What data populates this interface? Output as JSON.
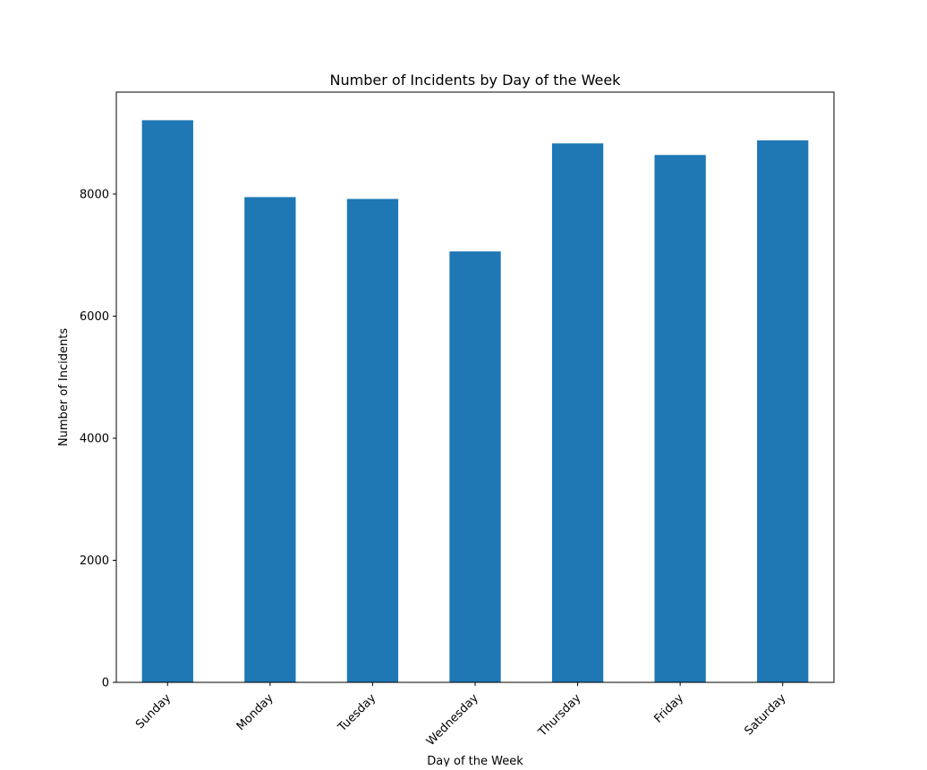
{
  "chart_data": {
    "type": "bar",
    "title": "Number of Incidents by Day of the Week",
    "xlabel": "Day of the Week",
    "ylabel": "Number of Incidents",
    "categories": [
      "Sunday",
      "Monday",
      "Tuesday",
      "Wednesday",
      "Thursday",
      "Friday",
      "Saturday"
    ],
    "values": [
      9210,
      7950,
      7920,
      7060,
      8830,
      8640,
      8880
    ],
    "ylim": [
      0,
      9670
    ],
    "yticks": [
      0,
      2000,
      4000,
      6000,
      8000
    ],
    "ytick_labels": [
      "0",
      "2000",
      "4000",
      "6000",
      "8000"
    ],
    "bar_color": "#1f77b4",
    "grid": false,
    "legend": "none"
  }
}
